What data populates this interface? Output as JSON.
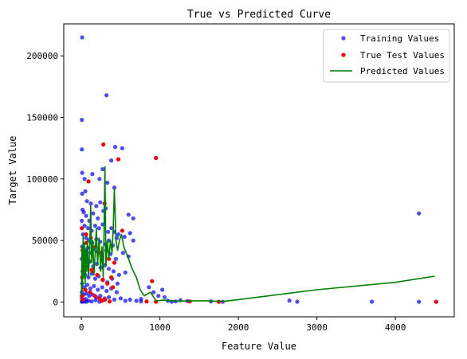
{
  "chart_data": {
    "type": "scatter",
    "title": "True vs Predicted Curve",
    "xlabel": "Feature Value",
    "ylabel": "Target Value",
    "xlim": [
      -225,
      4750
    ],
    "ylim": [
      -12000,
      226000
    ],
    "x_ticks": [
      0,
      1000,
      2000,
      3000,
      4000
    ],
    "y_ticks": [
      0,
      50000,
      100000,
      150000,
      200000
    ],
    "legend_position": "top-right",
    "grid": false,
    "series": [
      {
        "name": "Training Values",
        "kind": "scatter",
        "color": "#0000ff",
        "alpha": 0.7,
        "points": [
          [
            10,
            215000
          ],
          [
            320,
            168000
          ],
          [
            5,
            148000
          ],
          [
            5,
            124000
          ],
          [
            430,
            126000
          ],
          [
            520,
            125000
          ],
          [
            270,
            108000
          ],
          [
            10,
            105000
          ],
          [
            380,
            115000
          ],
          [
            140,
            104000
          ],
          [
            40,
            100000
          ],
          [
            230,
            100000
          ],
          [
            330,
            97000
          ],
          [
            420,
            93000
          ],
          [
            50,
            90000
          ],
          [
            10,
            88000
          ],
          [
            70,
            82000
          ],
          [
            120,
            80000
          ],
          [
            190,
            78000
          ],
          [
            240,
            81000
          ],
          [
            310,
            76000
          ],
          [
            15,
            75000
          ],
          [
            30,
            73000
          ],
          [
            60,
            70000
          ],
          [
            100,
            66000
          ],
          [
            150,
            72000
          ],
          [
            210,
            68000
          ],
          [
            280,
            74000
          ],
          [
            600,
            71000
          ],
          [
            660,
            68000
          ],
          [
            5,
            66000
          ],
          [
            40,
            62000
          ],
          [
            85,
            60000
          ],
          [
            130,
            58000
          ],
          [
            175,
            62000
          ],
          [
            225,
            60000
          ],
          [
            270,
            63000
          ],
          [
            340,
            57000
          ],
          [
            380,
            60000
          ],
          [
            420,
            57000
          ],
          [
            470,
            55000
          ],
          [
            550,
            53000
          ],
          [
            620,
            56000
          ],
          [
            20,
            55000
          ],
          [
            60,
            52000
          ],
          [
            95,
            50000
          ],
          [
            140,
            48000
          ],
          [
            190,
            51000
          ],
          [
            240,
            49000
          ],
          [
            300,
            47000
          ],
          [
            350,
            50000
          ],
          [
            400,
            46000
          ],
          [
            450,
            52000
          ],
          [
            660,
            50000
          ],
          [
            10,
            45000
          ],
          [
            45,
            42000
          ],
          [
            80,
            44000
          ],
          [
            115,
            40000
          ],
          [
            160,
            43000
          ],
          [
            205,
            41000
          ],
          [
            260,
            38000
          ],
          [
            320,
            42000
          ],
          [
            370,
            39000
          ],
          [
            440,
            35000
          ],
          [
            530,
            40000
          ],
          [
            600,
            37000
          ],
          [
            5,
            35000
          ],
          [
            35,
            32000
          ],
          [
            70,
            30000
          ],
          [
            110,
            33000
          ],
          [
            150,
            29000
          ],
          [
            195,
            31000
          ],
          [
            245,
            28000
          ],
          [
            300,
            30000
          ],
          [
            350,
            27000
          ],
          [
            410,
            25000
          ],
          [
            480,
            22000
          ],
          [
            560,
            24000
          ],
          [
            15,
            25000
          ],
          [
            50,
            22000
          ],
          [
            90,
            20000
          ],
          [
            130,
            23000
          ],
          [
            175,
            19000
          ],
          [
            220,
            21000
          ],
          [
            275,
            18000
          ],
          [
            330,
            16000
          ],
          [
            390,
            19000
          ],
          [
            460,
            15000
          ],
          [
            10,
            15000
          ],
          [
            40,
            12000
          ],
          [
            75,
            14000
          ],
          [
            115,
            11000
          ],
          [
            160,
            13000
          ],
          [
            210,
            10000
          ],
          [
            265,
            12000
          ],
          [
            320,
            9000
          ],
          [
            380,
            11000
          ],
          [
            450,
            8000
          ],
          [
            5,
            8000
          ],
          [
            30,
            6000
          ],
          [
            65,
            7000
          ],
          [
            100,
            5000
          ],
          [
            145,
            6000
          ],
          [
            190,
            4000
          ],
          [
            240,
            5000
          ],
          [
            295,
            3000
          ],
          [
            350,
            4000
          ],
          [
            420,
            2000
          ],
          [
            500,
            3000
          ],
          [
            560,
            1000
          ],
          [
            620,
            2000
          ],
          [
            700,
            1000
          ],
          [
            760,
            500
          ],
          [
            5,
            3000
          ],
          [
            20,
            1500
          ],
          [
            55,
            2500
          ],
          [
            90,
            1000
          ],
          [
            130,
            500
          ],
          [
            180,
            1500
          ],
          [
            230,
            300
          ],
          [
            5,
            500
          ],
          [
            10,
            200
          ],
          [
            15,
            1000
          ],
          [
            25,
            400
          ],
          [
            40,
            800
          ],
          [
            60,
            200
          ],
          [
            860,
            12000
          ],
          [
            920,
            8000
          ],
          [
            980,
            5000
          ],
          [
            1030,
            10000
          ],
          [
            1060,
            4000
          ],
          [
            1100,
            1000
          ],
          [
            1150,
            300
          ],
          [
            1200,
            500
          ],
          [
            1260,
            1500
          ],
          [
            1350,
            800
          ],
          [
            1650,
            500
          ],
          [
            1800,
            200
          ],
          [
            2650,
            1200
          ],
          [
            2750,
            300
          ],
          [
            3700,
            300
          ],
          [
            4300,
            72000
          ],
          [
            4300,
            200
          ],
          [
            760,
            2500
          ]
        ]
      },
      {
        "name": "True Test Values",
        "kind": "scatter",
        "color": "#ff0000",
        "alpha": 1,
        "points": [
          [
            280,
            128000
          ],
          [
            470,
            116000
          ],
          [
            950,
            117000
          ],
          [
            90,
            98000
          ],
          [
            295,
            80000
          ],
          [
            5,
            60000
          ],
          [
            60,
            55000
          ],
          [
            120,
            52000
          ],
          [
            520,
            58000
          ],
          [
            180,
            45000
          ],
          [
            240,
            40000
          ],
          [
            30,
            38000
          ],
          [
            350,
            35000
          ],
          [
            420,
            32000
          ],
          [
            80,
            30000
          ],
          [
            150,
            25000
          ],
          [
            200,
            22000
          ],
          [
            10,
            20000
          ],
          [
            270,
            18000
          ],
          [
            330,
            15000
          ],
          [
            400,
            12000
          ],
          [
            50,
            10000
          ],
          [
            110,
            8000
          ],
          [
            170,
            5000
          ],
          [
            230,
            3000
          ],
          [
            300,
            2000
          ],
          [
            5,
            5000
          ],
          [
            20,
            2000
          ],
          [
            900,
            17000
          ],
          [
            830,
            500
          ],
          [
            950,
            200
          ],
          [
            1380,
            500
          ],
          [
            1750,
            200
          ],
          [
            4520,
            200
          ],
          [
            260,
            1000
          ],
          [
            360,
            500
          ],
          [
            60,
            48000
          ],
          [
            15,
            42000
          ],
          [
            130,
            26000
          ],
          [
            380,
            20000
          ]
        ]
      },
      {
        "name": "Predicted Values",
        "kind": "line",
        "color": "#008000",
        "points": [
          [
            0,
            5000
          ],
          [
            8,
            45000
          ],
          [
            14,
            10000
          ],
          [
            22,
            55000
          ],
          [
            30,
            20000
          ],
          [
            38,
            48000
          ],
          [
            48,
            15000
          ],
          [
            58,
            42000
          ],
          [
            68,
            25000
          ],
          [
            78,
            50000
          ],
          [
            90,
            20000
          ],
          [
            105,
            40000
          ],
          [
            118,
            78000
          ],
          [
            130,
            32000
          ],
          [
            145,
            50000
          ],
          [
            160,
            22000
          ],
          [
            175,
            40000
          ],
          [
            190,
            60000
          ],
          [
            205,
            30000
          ],
          [
            225,
            52000
          ],
          [
            245,
            25000
          ],
          [
            262,
            45000
          ],
          [
            278,
            20000
          ],
          [
            290,
            60000
          ],
          [
            300,
            110000
          ],
          [
            312,
            30000
          ],
          [
            330,
            50000
          ],
          [
            350,
            35000
          ],
          [
            370,
            50000
          ],
          [
            390,
            40000
          ],
          [
            405,
            60000
          ],
          [
            420,
            92000
          ],
          [
            440,
            50000
          ],
          [
            460,
            42000
          ],
          [
            485,
            50000
          ],
          [
            510,
            55000
          ],
          [
            540,
            45000
          ],
          [
            570,
            40000
          ],
          [
            600,
            35000
          ],
          [
            640,
            28000
          ],
          [
            700,
            20000
          ],
          [
            750,
            10000
          ],
          [
            800,
            5000
          ],
          [
            880,
            8000
          ],
          [
            950,
            1000
          ],
          [
            1050,
            1500
          ],
          [
            1200,
            800
          ],
          [
            1400,
            1000
          ],
          [
            1600,
            1000
          ],
          [
            1800,
            500
          ],
          [
            2000,
            2000
          ],
          [
            3000,
            10000
          ],
          [
            4000,
            16000
          ],
          [
            4500,
            21000
          ]
        ]
      }
    ]
  }
}
